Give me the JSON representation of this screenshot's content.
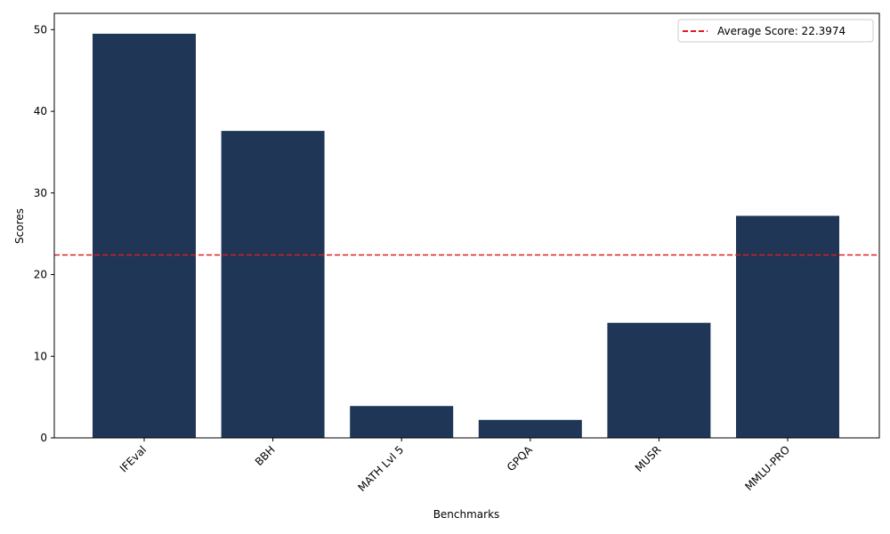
{
  "chart_data": {
    "type": "bar",
    "categories": [
      "IFEval",
      "BBH",
      "MATH Lvl 5",
      "GPQA",
      "MUSR",
      "MMLU-PRO"
    ],
    "values": [
      49.5,
      37.6,
      3.9,
      2.2,
      14.1,
      27.2
    ],
    "xlabel": "Benchmarks",
    "ylabel": "Scores",
    "ylim": [
      0,
      52
    ],
    "yticks": [
      0,
      10,
      20,
      30,
      40,
      50
    ],
    "bar_color": "#1f3657",
    "reference_line": {
      "value": 22.3974,
      "label": "Average Score: 22.3974",
      "color": "#e31a1c",
      "style": "dashed"
    },
    "legend_position": "top-right",
    "grid": false
  }
}
